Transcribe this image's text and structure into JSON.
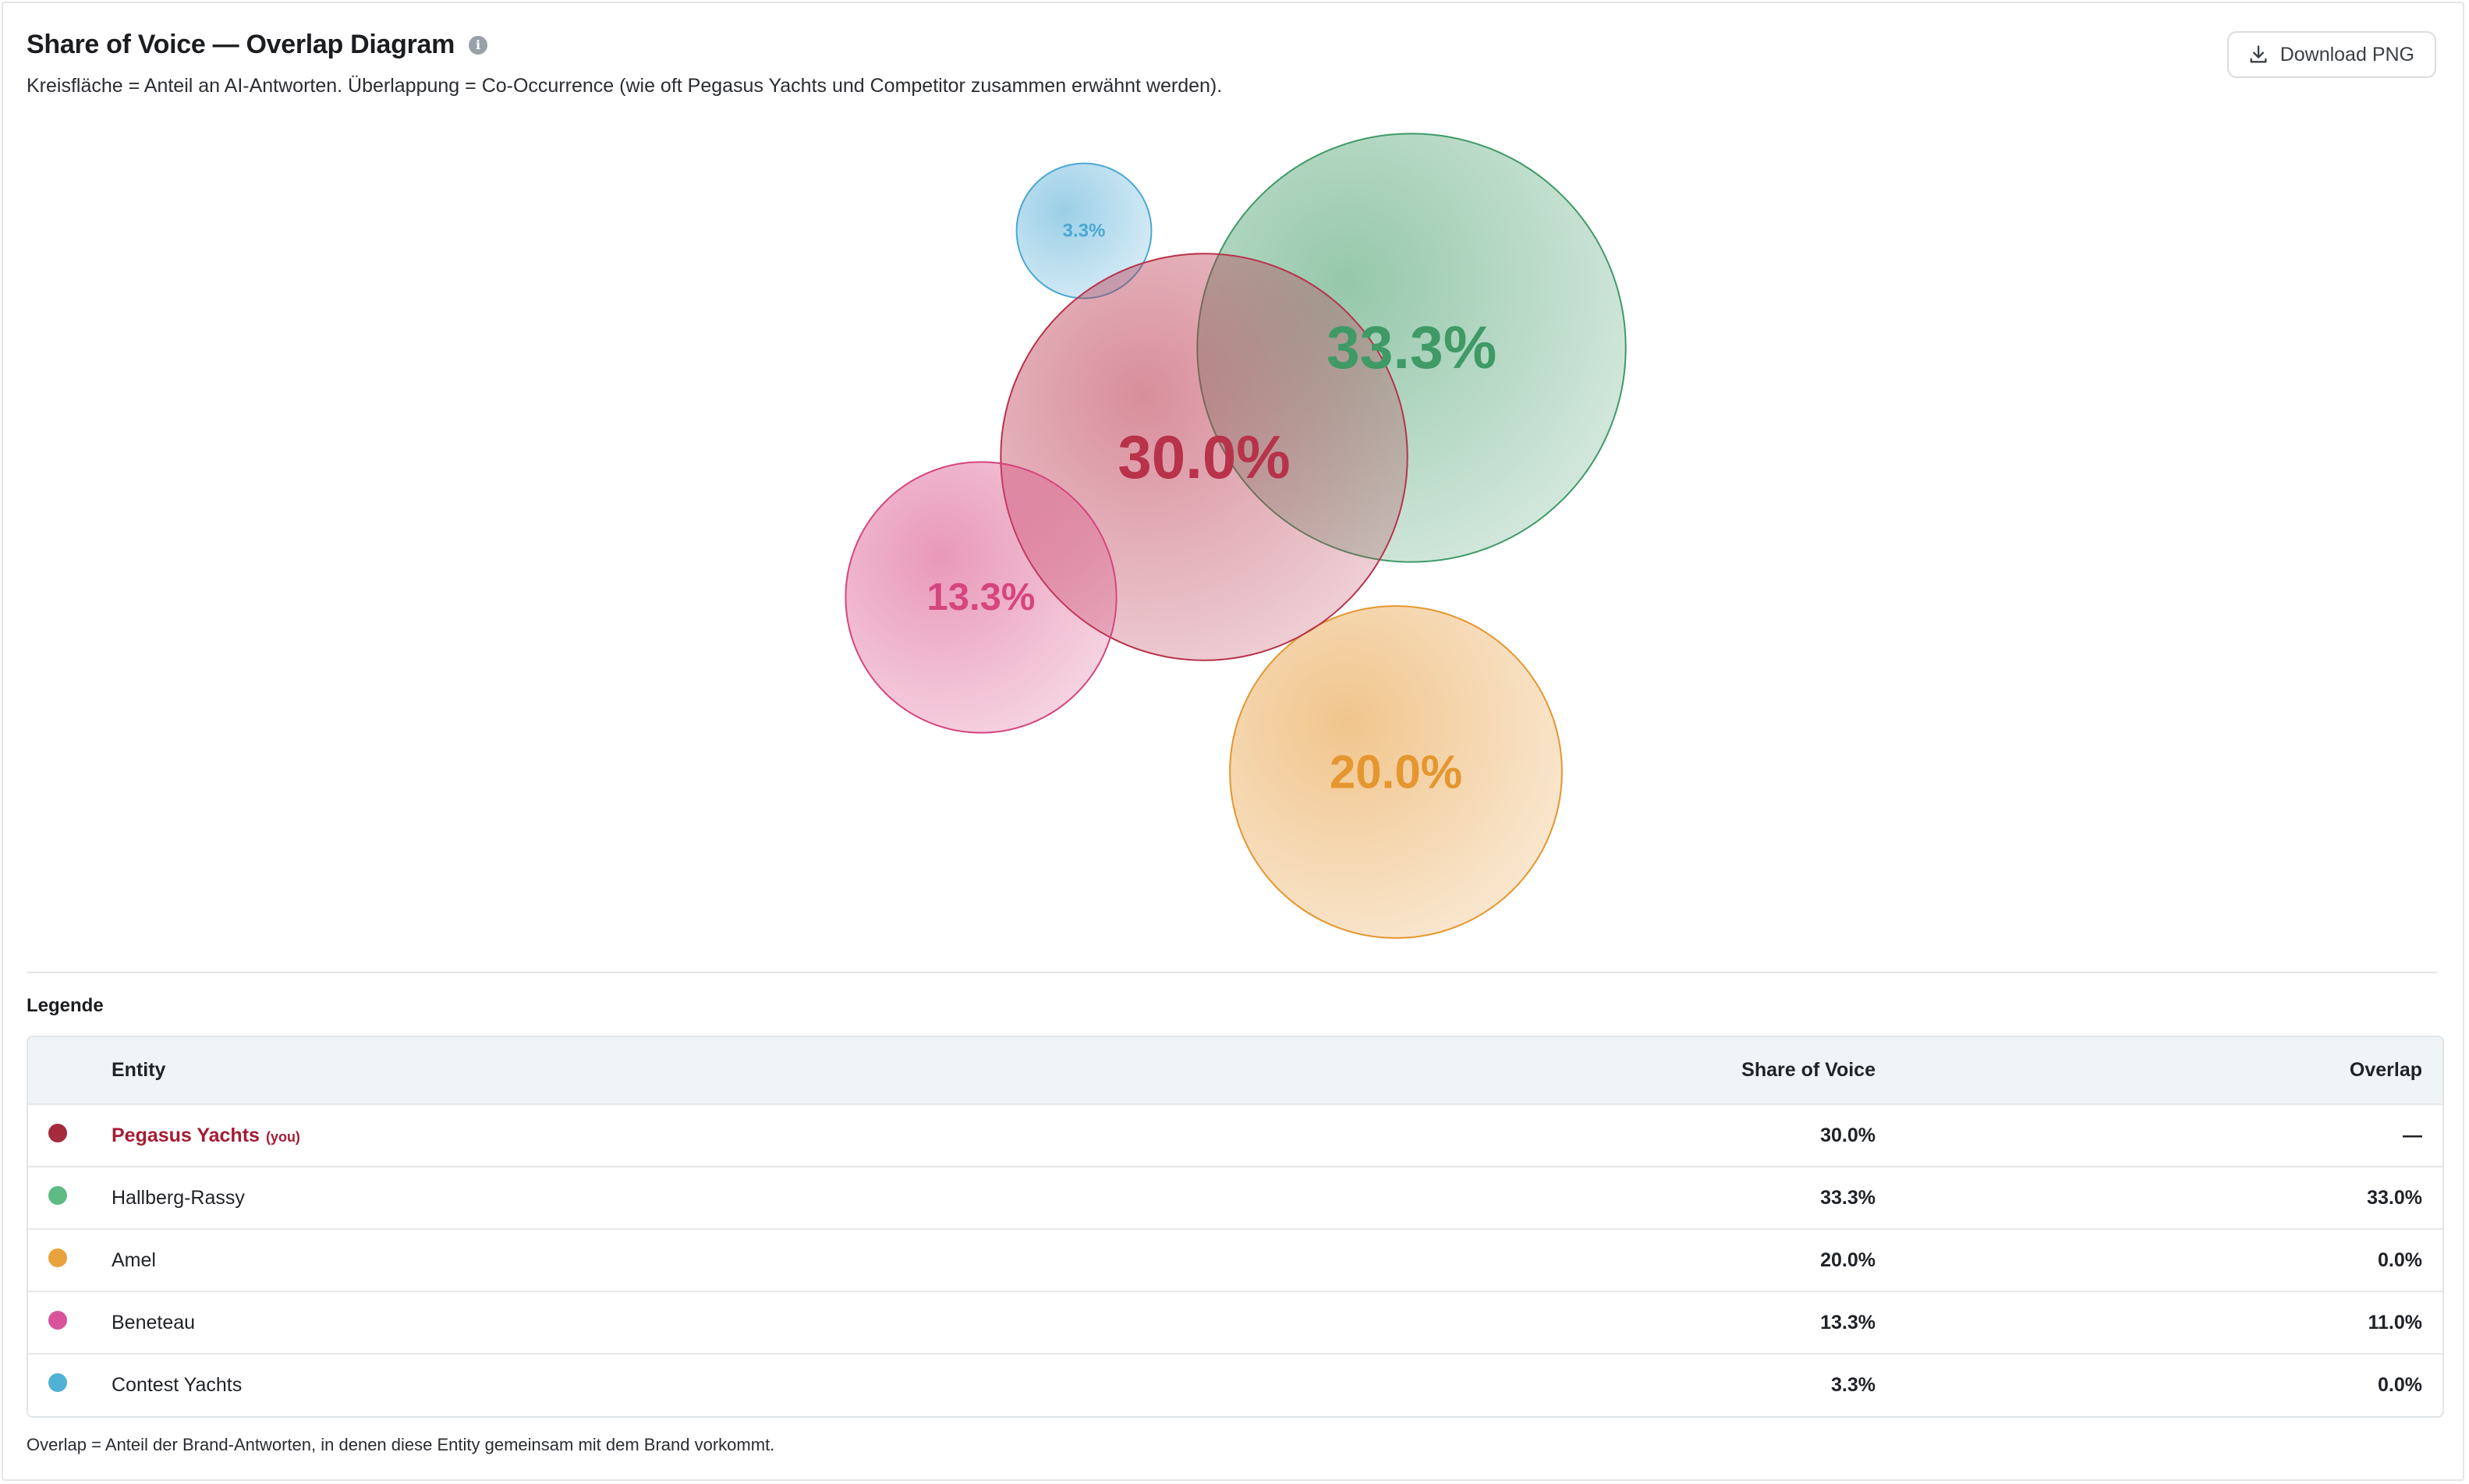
{
  "header": {
    "title": "Share of Voice — Overlap Diagram",
    "info_icon": "info-icon",
    "subtitle": "Kreisfläche = Anteil an AI-Antworten. Überlappung = Co-Occurrence (wie oft Pegasus Yachts und Competitor zusammen erwähnt werden).",
    "download_label": "Download PNG",
    "download_icon": "download-icon"
  },
  "chart_data": {
    "type": "bubble-venn",
    "series": [
      {
        "name": "Pegasus Yachts",
        "share": 30.0,
        "label": "30.0%",
        "color": "#b8324a",
        "overlap": null
      },
      {
        "name": "Hallberg-Rassy",
        "share": 33.3,
        "label": "33.3%",
        "color": "#3f9a66",
        "overlap": 33.0
      },
      {
        "name": "Amel",
        "share": 20.0,
        "label": "20.0%",
        "color": "#e5962f",
        "overlap": 0.0
      },
      {
        "name": "Beneteau",
        "share": 13.3,
        "label": "13.3%",
        "color": "#d6457f",
        "overlap": 11.0
      },
      {
        "name": "Contest Yachts",
        "share": 3.3,
        "label": "3.3%",
        "color": "#4aa8d3",
        "overlap": 0.0
      }
    ]
  },
  "legend": {
    "title": "Legende",
    "columns": {
      "entity": "Entity",
      "sov": "Share of Voice",
      "overlap": "Overlap"
    },
    "you_tag": "(you)",
    "rows": [
      {
        "entity": "Pegasus Yachts",
        "sov": "30.0%",
        "overlap": "—",
        "color": "#a52a3e",
        "you": true
      },
      {
        "entity": "Hallberg-Rassy",
        "sov": "33.3%",
        "overlap": "33.0%",
        "color": "#5dbb86",
        "you": false
      },
      {
        "entity": "Amel",
        "sov": "20.0%",
        "overlap": "0.0%",
        "color": "#e9a23e",
        "you": false
      },
      {
        "entity": "Beneteau",
        "sov": "13.3%",
        "overlap": "11.0%",
        "color": "#d9539a",
        "you": false
      },
      {
        "entity": "Contest Yachts",
        "sov": "3.3%",
        "overlap": "0.0%",
        "color": "#52b2d6",
        "you": false
      }
    ]
  },
  "footnote": "Overlap = Anteil der Brand-Antworten, in denen diese Entity gemeinsam mit dem Brand vorkommt."
}
